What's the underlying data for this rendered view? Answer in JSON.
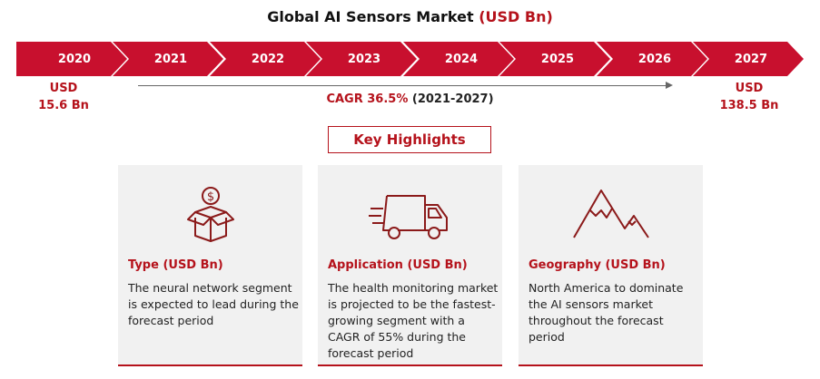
{
  "header": {
    "title_main": "Global AI Sensors Market",
    "title_accent": "(USD Bn)"
  },
  "timeline": {
    "years": [
      "2020",
      "2021",
      "2022",
      "2023",
      "2024",
      "2025",
      "2026",
      "2027"
    ],
    "start_label": "USD",
    "start_value": "15.6 Bn",
    "end_label": "USD",
    "end_value": "138.5 Bn",
    "cagr_label": "CAGR 36.5%",
    "cagr_period": "(2021-2027)"
  },
  "highlights": {
    "title": "Key Highlights",
    "cards": [
      {
        "icon": "money-box-icon",
        "heading": "Type (USD Bn)",
        "text": "The neural network segment is expected to lead during the forecast period"
      },
      {
        "icon": "delivery-truck-icon",
        "heading": "Application (USD Bn)",
        "text": "The health monitoring market is projected to be the fastest-growing segment with a CAGR of 55% during the forecast period"
      },
      {
        "icon": "mountain-icon",
        "heading": "Geography (USD Bn)",
        "text": "North America to dominate the AI sensors market throughout the forecast period"
      }
    ]
  },
  "colors": {
    "accent": "#c8102e",
    "accent_text": "#b5121b",
    "card_bg": "#f1f1f1"
  }
}
